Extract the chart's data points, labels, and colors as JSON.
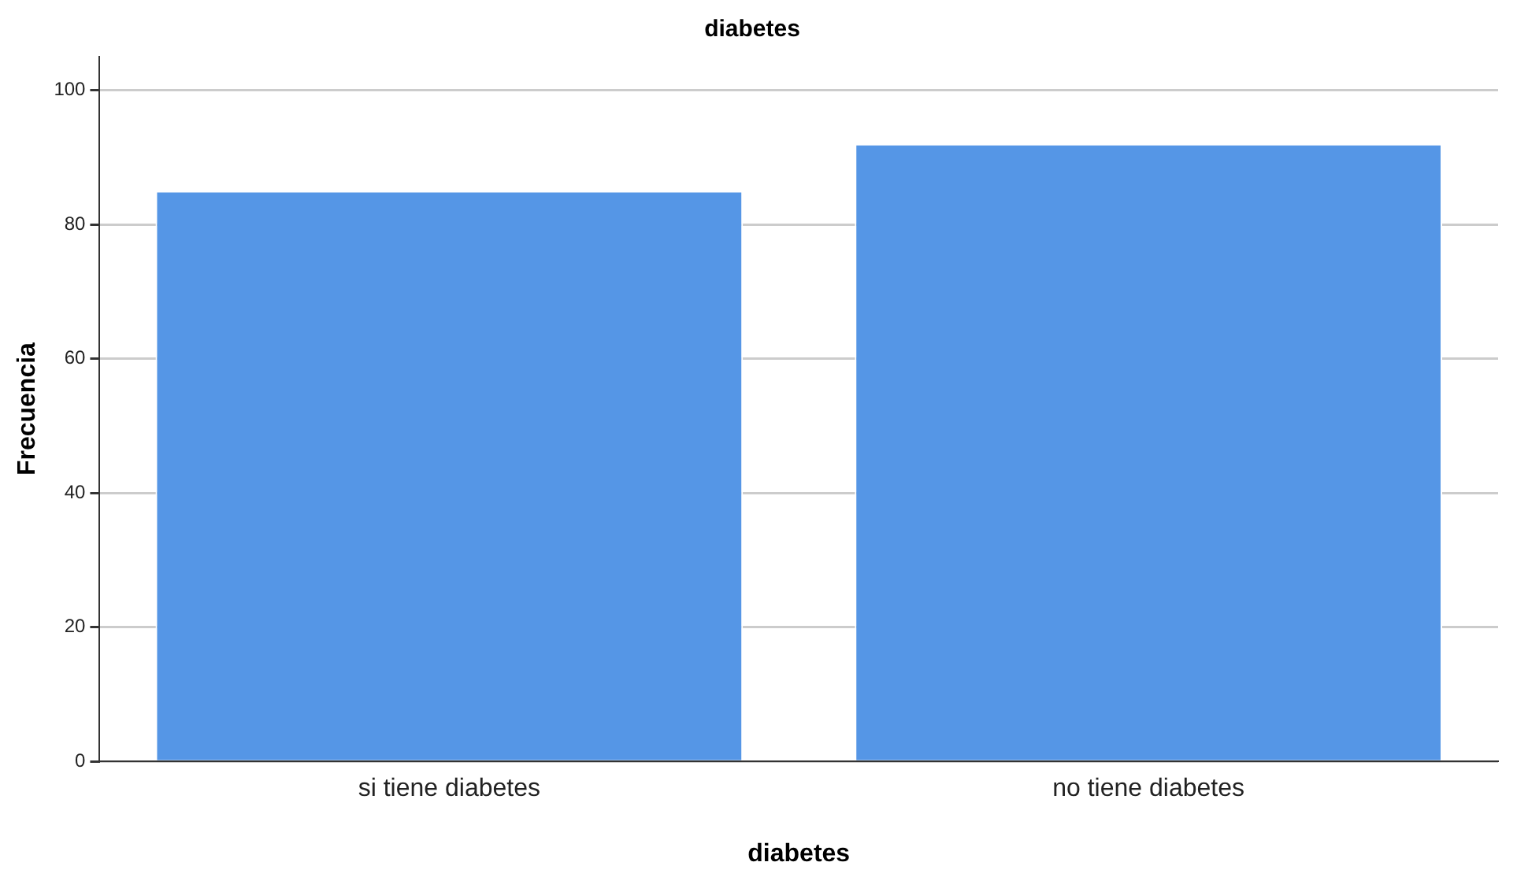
{
  "chart_data": {
    "type": "bar",
    "title": "diabetes",
    "xlabel": "diabetes",
    "ylabel": "Frecuencia",
    "categories": [
      "si tiene diabetes",
      "no tiene diabetes"
    ],
    "values": [
      85,
      92
    ],
    "color": "#5596e6",
    "ylim": [
      0,
      105
    ],
    "yticks": [
      0,
      20,
      40,
      60,
      80,
      100
    ],
    "grid": "y",
    "legend": false
  }
}
